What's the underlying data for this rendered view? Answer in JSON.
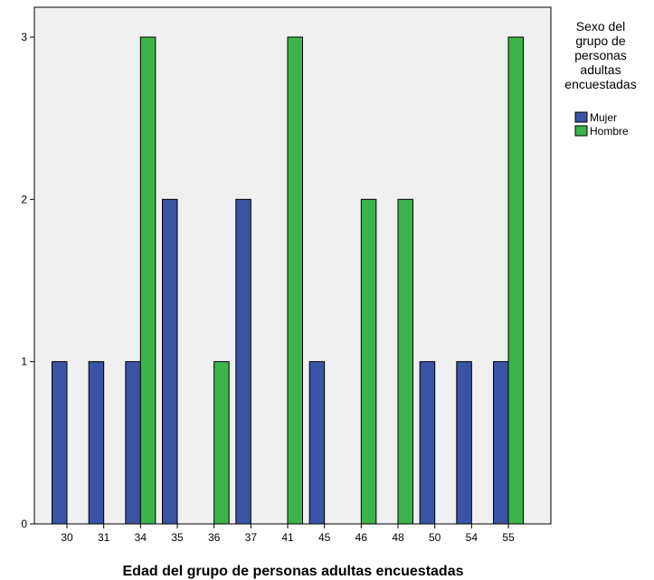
{
  "chart_data": {
    "type": "bar",
    "categories": [
      "30",
      "31",
      "34",
      "35",
      "36",
      "37",
      "41",
      "45",
      "46",
      "48",
      "50",
      "54",
      "55"
    ],
    "series": [
      {
        "name": "Mujer",
        "color": "#3a53a4",
        "values": [
          1,
          1,
          1,
          2,
          0,
          2,
          0,
          1,
          0,
          0,
          1,
          1,
          1
        ]
      },
      {
        "name": "Hombre",
        "color": "#3cb44a",
        "values": [
          0,
          0,
          3,
          0,
          1,
          0,
          3,
          0,
          2,
          2,
          0,
          0,
          3
        ]
      }
    ],
    "xlabel": "Edad del grupo de personas adultas encuestadas",
    "ylabel": "",
    "ylim": [
      0,
      3
    ],
    "yticks": [
      "0",
      "1",
      "2",
      "3"
    ],
    "legend": {
      "title_lines": [
        "Sexo del",
        "grupo de",
        "personas",
        "adultas",
        "encuestadas"
      ],
      "placement": "right"
    },
    "grid": false,
    "plot_background": "#f0f0f0"
  }
}
